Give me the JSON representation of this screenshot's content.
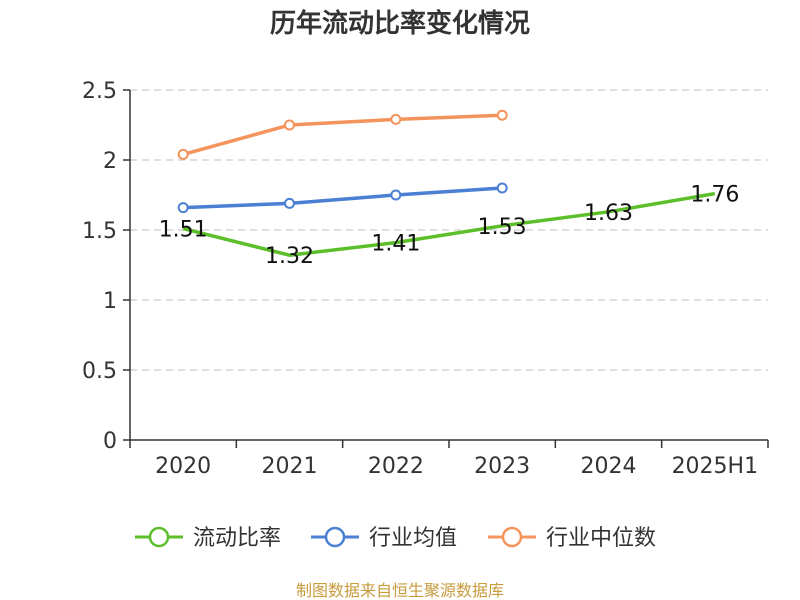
{
  "chart_data": {
    "type": "line",
    "title": "历年流动比率变化情况",
    "categories": [
      "2020",
      "2021",
      "2022",
      "2023",
      "2024",
      "2025H1"
    ],
    "ylim": [
      0,
      2.5
    ],
    "yticks": [
      "0",
      "0.5",
      "1",
      "1.5",
      "2",
      "2.5"
    ],
    "grid": true,
    "legend_position": "bottom",
    "series": [
      {
        "name": "流动比率",
        "color": "#5cbf2a",
        "values": [
          1.51,
          1.32,
          1.41,
          1.53,
          1.63,
          1.76
        ],
        "labels": [
          "1.51",
          "1.32",
          "1.41",
          "1.53",
          "1.63",
          "1.76"
        ],
        "show_markers": false
      },
      {
        "name": "行业均值",
        "color": "#4a7fd4",
        "values": [
          1.66,
          1.69,
          1.75,
          1.8,
          null,
          null
        ],
        "show_markers": true
      },
      {
        "name": "行业中位数",
        "color": "#f4935c",
        "values": [
          2.04,
          2.25,
          2.29,
          2.32,
          null,
          null
        ],
        "show_markers": true
      }
    ]
  },
  "source": "制图数据来自恒生聚源数据库"
}
